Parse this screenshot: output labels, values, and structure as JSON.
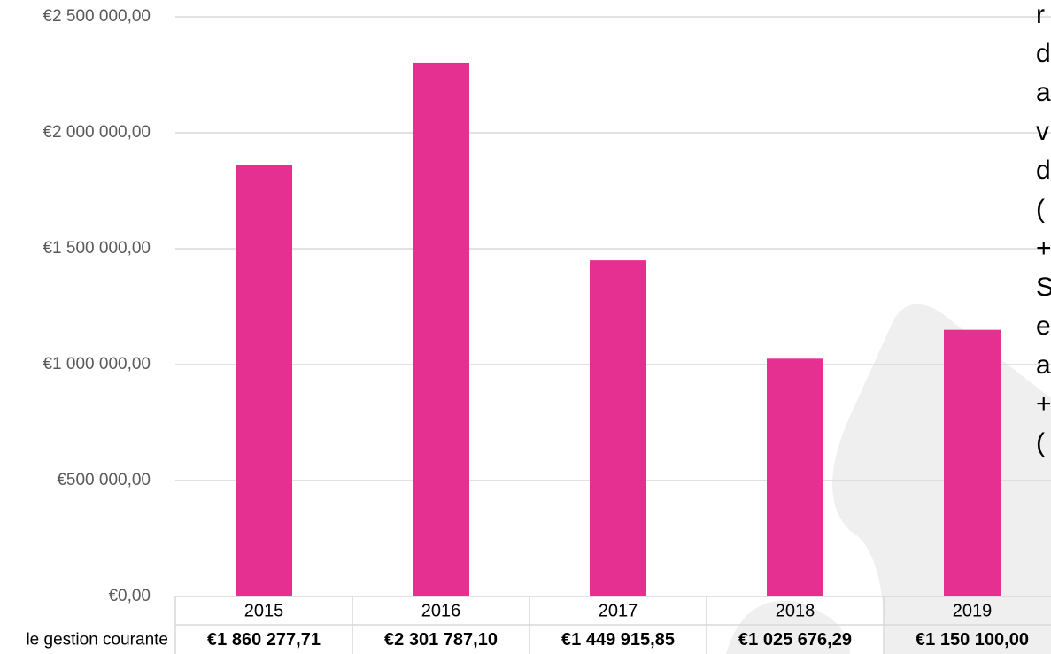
{
  "chart_data": {
    "type": "bar",
    "categories": [
      "2015",
      "2016",
      "2017",
      "2018",
      "2019"
    ],
    "series": [
      {
        "name": "le gestion courante",
        "color": "#e53092",
        "values": [
          1860277.71,
          2301787.1,
          1449915.85,
          1025676.29,
          1150100.0
        ],
        "value_labels": [
          "€1 860 277,71",
          "€2 301 787,10",
          "€1 449 915,85",
          "€1 025 676,29",
          "€1 150 100,00"
        ]
      }
    ],
    "ylim": [
      0,
      2500000
    ],
    "yticks": [
      {
        "value": 0,
        "label": "€0,00"
      },
      {
        "value": 500000,
        "label": "€500 000,00"
      },
      {
        "value": 1000000,
        "label": "€1 000 000,00"
      },
      {
        "value": 1500000,
        "label": "€1 500 000,00"
      },
      {
        "value": 2000000,
        "label": "€2 000 000,00"
      },
      {
        "value": 2500000,
        "label": "€2 500 000,00"
      }
    ],
    "grid": true,
    "side_text": [
      "r",
      "d",
      "a",
      "v",
      "d",
      "(",
      "+",
      "S",
      "e",
      "a",
      "+",
      "("
    ]
  }
}
